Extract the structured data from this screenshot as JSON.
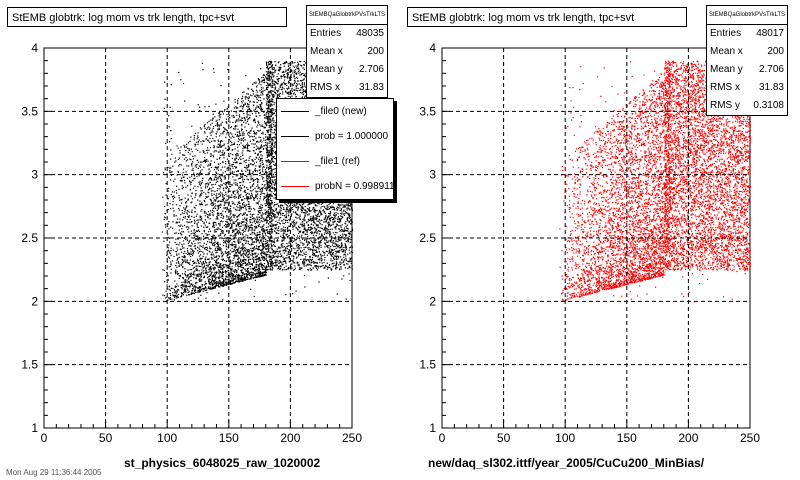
{
  "chart_data": [
    {
      "type": "scatter",
      "title": "StEMB globtrk: log mom vs trk length, tpc+svt",
      "xlabel": "st_physics_6048025_raw_1020002",
      "ylabel": "",
      "xlim": [
        0,
        250
      ],
      "ylim": [
        1,
        4
      ],
      "x_ticks": [
        "0",
        "50",
        "100",
        "150",
        "200",
        "250"
      ],
      "y_ticks": [
        "1",
        "1.5",
        "2",
        "2.5",
        "3",
        "3.5",
        "4"
      ],
      "grid": true,
      "marker_color": "#000000",
      "stats": {
        "name": "StEMBQaGlobtrkPVsTrkLTS",
        "rows": [
          {
            "label": "Entries",
            "value": "48035"
          },
          {
            "label": "Mean x",
            "value": "200"
          },
          {
            "label": "Mean y",
            "value": "2.706"
          },
          {
            "label": "RMS x",
            "value": "31.83"
          }
        ]
      },
      "legend": {
        "placement": "top-right",
        "entries": [
          {
            "label": "_file0 (new)",
            "color": "#000000"
          },
          {
            "label": "prob = 1.000000",
            "color": "#000000"
          },
          {
            "label": "_file1 (ref)",
            "color": "#ff0000"
          },
          {
            "label": "probN = 0.998911",
            "color": "#ff0000"
          }
        ]
      }
    },
    {
      "type": "scatter",
      "title": "StEMB globtrk: log mom vs trk length, tpc+svt",
      "xlabel": "new/daq_sl302.ittf/year_2005/CuCu200_MinBias/",
      "ylabel": "",
      "xlim": [
        0,
        250
      ],
      "ylim": [
        1,
        4
      ],
      "x_ticks": [
        "0",
        "50",
        "100",
        "150",
        "200",
        "250"
      ],
      "y_ticks": [
        "1",
        "1.5",
        "2",
        "2.5",
        "3",
        "3.5",
        "4"
      ],
      "grid": true,
      "marker_color": "#ff0000",
      "stats": {
        "name": "StEMBQaGlobtrkPVsTrkLTS",
        "rows": [
          {
            "label": "Entries",
            "value": "48017"
          },
          {
            "label": "Mean x",
            "value": "200"
          },
          {
            "label": "Mean y",
            "value": "2.706"
          },
          {
            "label": "RMS x",
            "value": "31.83"
          },
          {
            "label": "RMS y",
            "value": "0.3108"
          }
        ]
      }
    }
  ],
  "footer": "Mon Aug 29 11:36:44 2005"
}
